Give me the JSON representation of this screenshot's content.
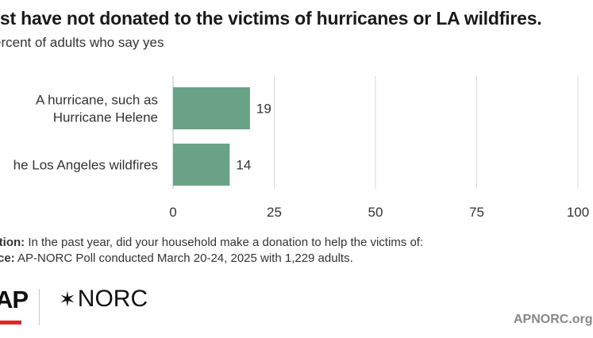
{
  "header": {
    "title": "ost have not donated to the victims of hurricanes or LA wildfires.",
    "subtitle": "ercent of adults who say yes"
  },
  "chart_data": {
    "type": "bar",
    "orientation": "horizontal",
    "categories": [
      "A hurricane, such as Hurricane Helene",
      "he Los Angeles wildfires"
    ],
    "category_lines": [
      [
        "A hurricane, such as",
        "Hurricane Helene"
      ],
      [
        "he Los Angeles wildfires"
      ]
    ],
    "values": [
      19,
      14
    ],
    "xlim": [
      0,
      100
    ],
    "ticks": [
      0,
      25,
      50,
      75,
      100
    ],
    "tick_labels": [
      "0",
      "25",
      "50",
      "75",
      "100"
    ],
    "grid": true,
    "bar_color": "#6aa288"
  },
  "footer": {
    "question_label": "estion:",
    "question_text": " In the past year, did your household make a donation to help the victims of:",
    "source_label": "urce:",
    "source_text": " AP-NORC Poll conducted March 20-24, 2025 with 1,229 adults.",
    "ap_logo": "AP",
    "norc_mark": "✶",
    "norc_logo": "NORC",
    "site": "APNORC.org"
  },
  "colors": {
    "bar": "#6aa288",
    "ap_red": "#e0262b",
    "grid": "#d9d9d9"
  }
}
